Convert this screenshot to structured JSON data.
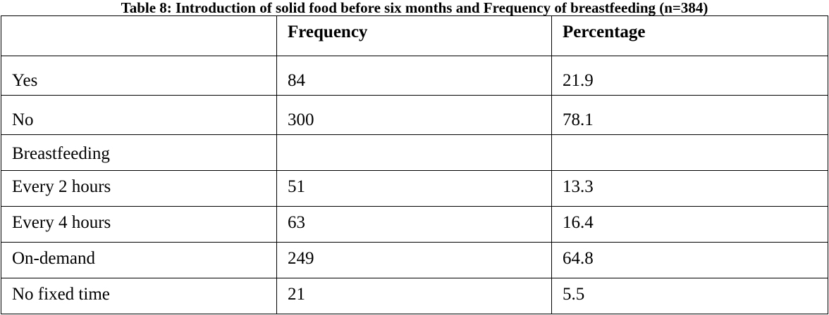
{
  "caption": "Table 8: Introduction of solid food before six months and Frequency of breastfeeding (n=384)",
  "columns": [
    "",
    "Frequency",
    "Percentage"
  ],
  "rows": [
    {
      "label": "Yes",
      "frequency": "84",
      "percentage": "21.9"
    },
    {
      "label": "No",
      "frequency": "300",
      "percentage": "78.1"
    },
    {
      "label": "Breastfeeding",
      "frequency": "",
      "percentage": ""
    },
    {
      "label": "Every 2 hours",
      "frequency": "51",
      "percentage": "13.3"
    },
    {
      "label": "Every 4 hours",
      "frequency": "63",
      "percentage": "16.4"
    },
    {
      "label": "On-demand",
      "frequency": "249",
      "percentage": "64.8"
    },
    {
      "label": "No fixed time",
      "frequency": "21",
      "percentage": "5.5"
    }
  ]
}
